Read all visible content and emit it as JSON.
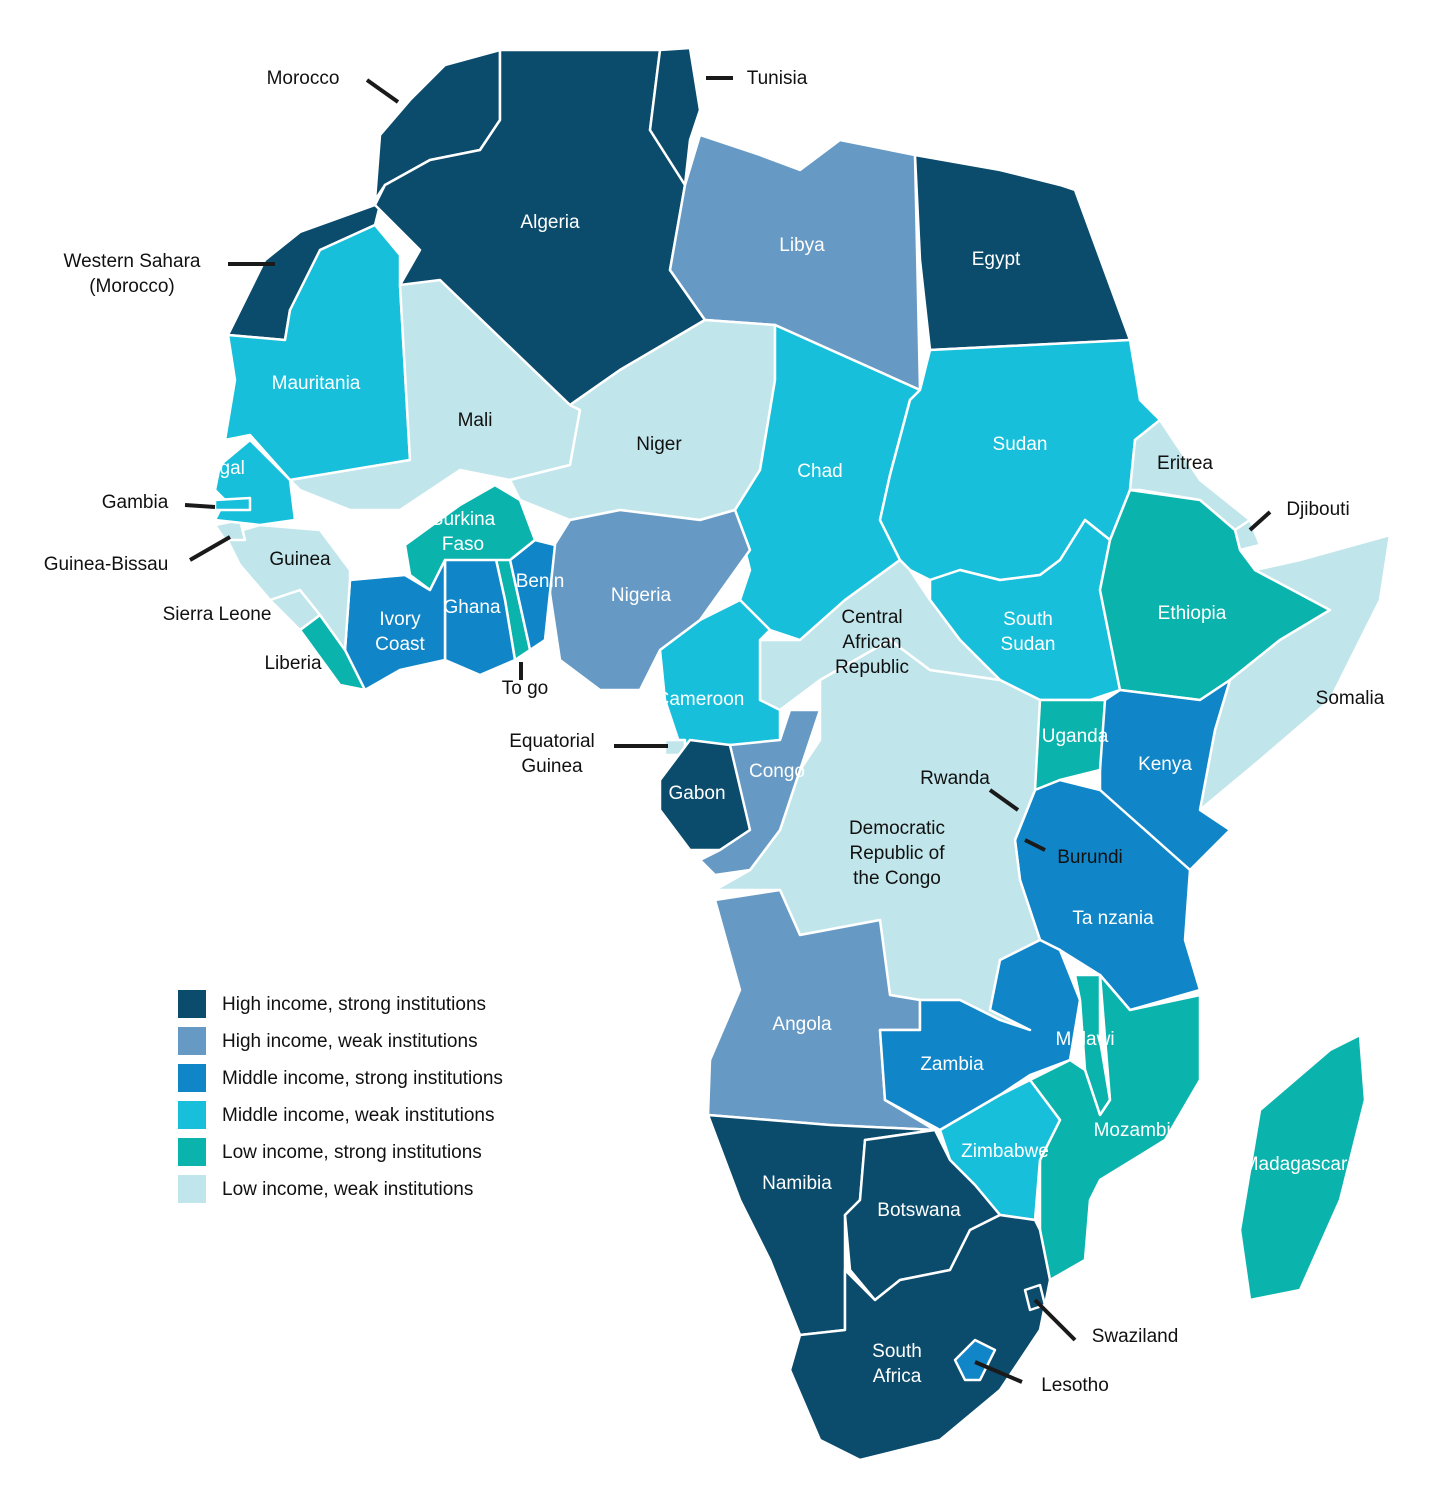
{
  "legend": [
    {
      "label": "High income, strong institutions",
      "color": "#0b4b6c"
    },
    {
      "label": "High income, weak institutions",
      "color": "#6699c4"
    },
    {
      "label": "Middle income, strong institutions",
      "color": "#1086c8"
    },
    {
      "label": "Middle income, weak institutions",
      "color": "#17bfda"
    },
    {
      "label": "Low income, strong institutions",
      "color": "#0bb3ad"
    },
    {
      "label": "Low income, weak institutions",
      "color": "#c0e5ea"
    }
  ],
  "countries": [
    {
      "name": [
        "Morocco"
      ],
      "color": "#0b4b6c"
    },
    {
      "name": [
        "Western Sahara",
        "(Morocco)"
      ],
      "color": "#0b4b6c"
    },
    {
      "name": [
        "Algeria"
      ],
      "color": "#0b4b6c"
    },
    {
      "name": [
        "Tunisia"
      ],
      "color": "#0b4b6c"
    },
    {
      "name": [
        "Libya"
      ],
      "color": "#6699c4"
    },
    {
      "name": [
        "Egypt"
      ],
      "color": "#0b4b6c"
    },
    {
      "name": [
        "Mauritania"
      ],
      "color": "#17bfda"
    },
    {
      "name": [
        "Mali"
      ],
      "color": "#c0e5ea"
    },
    {
      "name": [
        "Niger"
      ],
      "color": "#c0e5ea"
    },
    {
      "name": [
        "Chad"
      ],
      "color": "#17bfda"
    },
    {
      "name": [
        "Sudan"
      ],
      "color": "#17bfda"
    },
    {
      "name": [
        "South",
        "Sudan"
      ],
      "color": "#17bfda"
    },
    {
      "name": [
        "Eritrea"
      ],
      "color": "#c0e5ea"
    },
    {
      "name": [
        "Djibouti"
      ],
      "color": "#c0e5ea"
    },
    {
      "name": [
        "Ethiopia"
      ],
      "color": "#0bb3ad"
    },
    {
      "name": [
        "Somalia"
      ],
      "color": "#c0e5ea"
    },
    {
      "name": [
        "Kenya"
      ],
      "color": "#1086c8"
    },
    {
      "name": [
        "Uganda"
      ],
      "color": "#0bb3ad"
    },
    {
      "name": [
        "Rwanda"
      ],
      "color": "#0bb3ad"
    },
    {
      "name": [
        "Burundi"
      ],
      "color": "#c0e5ea"
    },
    {
      "name": [
        "Ta nzania"
      ],
      "color": "#1086c8"
    },
    {
      "name": [
        "Democratic",
        "Republic of",
        "the Congo"
      ],
      "color": "#c0e5ea"
    },
    {
      "name": [
        "Central",
        "African",
        "Republic"
      ],
      "color": "#c0e5ea"
    },
    {
      "name": [
        "Cameroon"
      ],
      "color": "#17bfda"
    },
    {
      "name": [
        "Nigeria"
      ],
      "color": "#6699c4"
    },
    {
      "name": [
        "Benin"
      ],
      "color": "#1086c8"
    },
    {
      "name": [
        "To go"
      ],
      "color": "#0bb3ad"
    },
    {
      "name": [
        "Ghana"
      ],
      "color": "#1086c8"
    },
    {
      "name": [
        "Burkina",
        "Faso"
      ],
      "color": "#0bb3ad"
    },
    {
      "name": [
        "Ivory",
        "Coast"
      ],
      "color": "#1086c8"
    },
    {
      "name": [
        "Liberia"
      ],
      "color": "#0bb3ad"
    },
    {
      "name": [
        "Sierra Leone"
      ],
      "color": "#c0e5ea"
    },
    {
      "name": [
        "Guinea"
      ],
      "color": "#c0e5ea"
    },
    {
      "name": [
        "Guinea-Bissau"
      ],
      "color": "#c0e5ea"
    },
    {
      "name": [
        "Senegal"
      ],
      "color": "#17bfda"
    },
    {
      "name": [
        "Gambia"
      ],
      "color": "#17bfda"
    },
    {
      "name": [
        "Equatorial",
        "Guinea"
      ],
      "color": "#c0e5ea"
    },
    {
      "name": [
        "Gabon"
      ],
      "color": "#0b4b6c"
    },
    {
      "name": [
        "Congo"
      ],
      "color": "#6699c4"
    },
    {
      "name": [
        "Angola"
      ],
      "color": "#6699c4"
    },
    {
      "name": [
        "Zambia"
      ],
      "color": "#1086c8"
    },
    {
      "name": [
        "Malawi"
      ],
      "color": "#0bb3ad"
    },
    {
      "name": [
        "Mozambique"
      ],
      "color": "#0bb3ad"
    },
    {
      "name": [
        "Zimbabwe"
      ],
      "color": "#17bfda"
    },
    {
      "name": [
        "Namibia"
      ],
      "color": "#0b4b6c"
    },
    {
      "name": [
        "Botswana"
      ],
      "color": "#0b4b6c"
    },
    {
      "name": [
        "South",
        "Africa"
      ],
      "color": "#0b4b6c"
    },
    {
      "name": [
        "Lesotho"
      ],
      "color": "#1086c8"
    },
    {
      "name": [
        "Swaziland"
      ],
      "color": "#0b4b6c"
    },
    {
      "name": [
        "Madagascar"
      ],
      "color": "#0bb3ad"
    }
  ]
}
